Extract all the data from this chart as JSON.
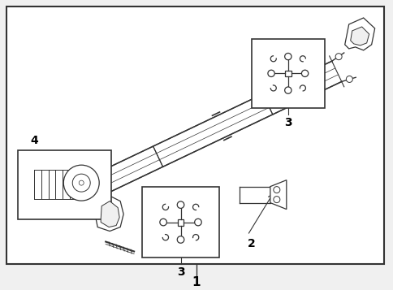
{
  "bg_color": "#f0f0f0",
  "border_color": "#333333",
  "line_color": "#333333",
  "white": "#ffffff",
  "label_fontsize": 10,
  "label_fontweight": "bold",
  "figsize": [
    4.85,
    3.57
  ],
  "dpi": 100
}
